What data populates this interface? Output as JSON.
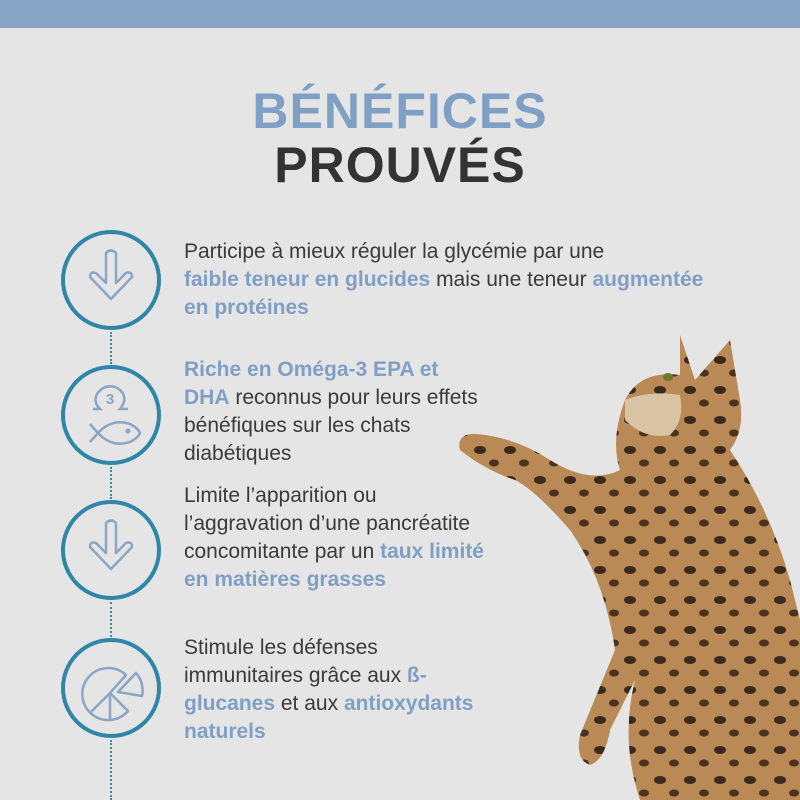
{
  "header": {
    "title_line1": "BÉNÉFICES",
    "title_line2": "PROUVÉS"
  },
  "colors": {
    "accent": "#809fc5",
    "circle": "#2f86a6",
    "topbar": "#87a4c4",
    "background": "#e5e5e5",
    "text": "#3a3a3a"
  },
  "benefits": [
    {
      "icon": "arrow-down-icon",
      "parts": [
        "Participe à mieux réguler la glycémie par une ",
        "faible teneur en glucides",
        " mais une teneur ",
        "augmentée en protéines",
        ""
      ]
    },
    {
      "icon": "omega3-fish-icon",
      "omega_number": "3",
      "parts": [
        "",
        "Riche en Oméga-3 EPA et DHA",
        " reconnus pour leurs effets bénéfiques sur les chats diabétiques",
        "",
        ""
      ]
    },
    {
      "icon": "arrow-down-icon",
      "parts": [
        "Limite l’apparition ou l’aggravation d’une pancréatite concomitante par un ",
        "taux limité en matières grasses",
        "",
        "",
        ""
      ]
    },
    {
      "icon": "pie-chart-icon",
      "parts": [
        "Stimule les défenses immunitaires grâce aux ",
        "ß-glucanes",
        " et aux ",
        "antioxydants naturels",
        ""
      ]
    }
  ]
}
